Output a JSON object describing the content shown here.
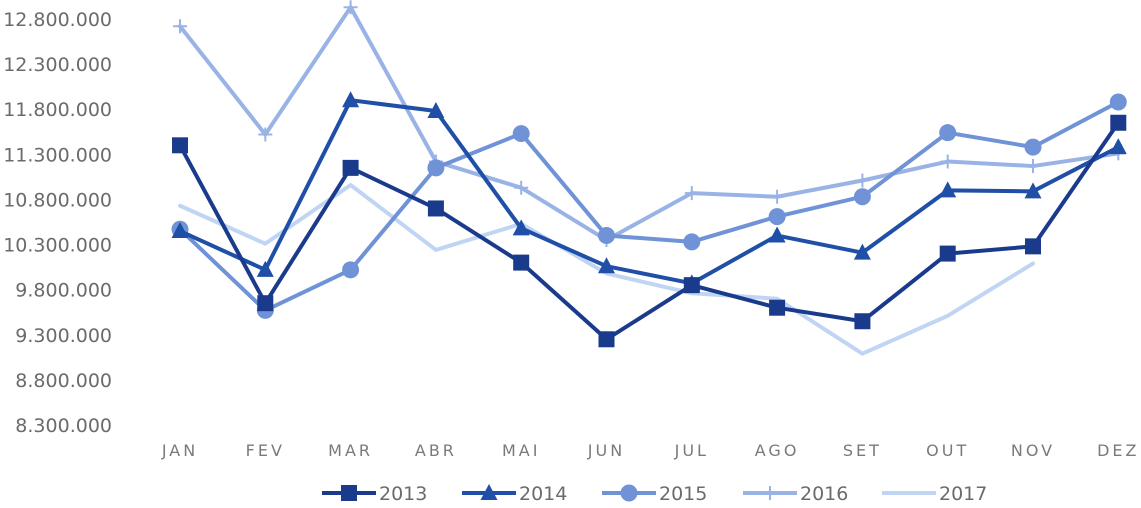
{
  "chart_data": {
    "type": "line",
    "categories": [
      "JAN",
      "FEV",
      "MAR",
      "ABR",
      "MAI",
      "JUN",
      "JUL",
      "AGO",
      "SET",
      "OUT",
      "NOV",
      "DEZ"
    ],
    "ylim": [
      8300000,
      12800000
    ],
    "yticks": [
      12800000,
      12300000,
      11800000,
      11300000,
      10800000,
      10300000,
      9800000,
      9300000,
      8800000,
      8300000
    ],
    "ytick_labels": [
      "12.800.000",
      "12.300.000",
      "11.800.000",
      "11.300.000",
      "10.800.000",
      "10.300.000",
      "9.800.000",
      "9.300.000",
      "8.800.000",
      "8.300.000"
    ],
    "grid": false,
    "legend_position": "bottom",
    "series": [
      {
        "name": "2013",
        "color": "#1a3a8c",
        "marker": "square",
        "values": [
          11400000,
          9650000,
          11150000,
          10700000,
          10100000,
          9250000,
          9850000,
          9600000,
          9450000,
          10200000,
          10280000,
          11650000
        ]
      },
      {
        "name": "2014",
        "color": "#1f4fa6",
        "marker": "triangle",
        "values": [
          10450000,
          10020000,
          11900000,
          11780000,
          10480000,
          10060000,
          9870000,
          10400000,
          10210000,
          10900000,
          10890000,
          11380000
        ]
      },
      {
        "name": "2015",
        "color": "#6f93d6",
        "marker": "circle",
        "values": [
          10470000,
          9570000,
          10020000,
          11150000,
          11530000,
          10400000,
          10330000,
          10610000,
          10830000,
          11540000,
          11380000,
          11880000
        ]
      },
      {
        "name": "2016",
        "color": "#9ab3e6",
        "marker": "plus",
        "values": [
          12720000,
          11520000,
          12930000,
          11220000,
          10930000,
          10350000,
          10870000,
          10830000,
          11010000,
          11220000,
          11170000,
          11310000
        ]
      },
      {
        "name": "2017",
        "color": "#c0d4f3",
        "marker": "none",
        "values": [
          10730000,
          10310000,
          10960000,
          10240000,
          10530000,
          9980000,
          9760000,
          9700000,
          9090000,
          9510000,
          10090000,
          null
        ]
      }
    ]
  }
}
